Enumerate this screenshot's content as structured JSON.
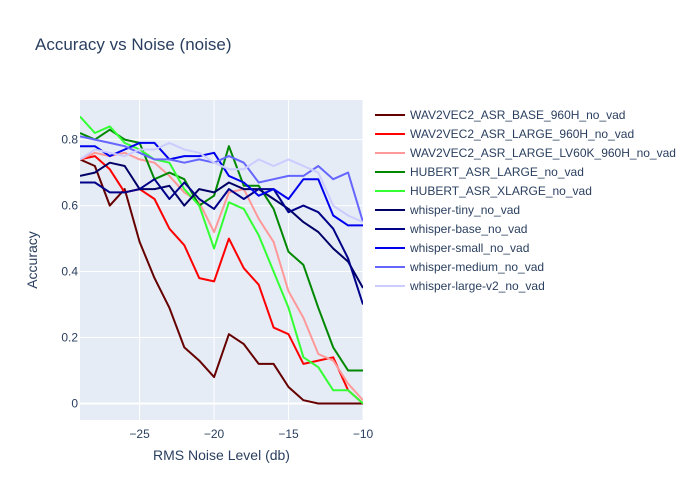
{
  "chart_data": {
    "type": "line",
    "title": "Accuracy vs Noise (noise)",
    "xlabel": "RMS Noise Level (db)",
    "ylabel": "Accuracy",
    "xlim": [
      -29,
      -10
    ],
    "ylim": [
      -0.05,
      0.92
    ],
    "x_ticks": [
      -25,
      -20,
      -15,
      -10
    ],
    "x_tick_labels": [
      "−25",
      "−20",
      "−15",
      "−10"
    ],
    "y_ticks": [
      0,
      0.2,
      0.4,
      0.6,
      0.8
    ],
    "y_tick_labels": [
      "0",
      "0.2",
      "0.4",
      "0.6",
      "0.8"
    ],
    "grid": true,
    "legend_position": "right",
    "x": [
      -29,
      -28,
      -27,
      -26,
      -25,
      -24,
      -23,
      -22,
      -21,
      -20,
      -19,
      -18,
      -17,
      -16,
      -15,
      -14,
      -13,
      -12,
      -11,
      -10
    ],
    "series": [
      {
        "name": "WAV2VEC2_ASR_BASE_960H_no_vad",
        "color": "#660000",
        "values": [
          0.74,
          0.72,
          0.6,
          0.65,
          0.49,
          0.38,
          0.29,
          0.17,
          0.13,
          0.08,
          0.21,
          0.18,
          0.12,
          0.12,
          0.05,
          0.01,
          0.0,
          0.0,
          0.0,
          0.0
        ]
      },
      {
        "name": "WAV2VEC2_ASR_LARGE_960H_no_vad",
        "color": "#ff0000",
        "values": [
          0.74,
          0.75,
          0.71,
          0.64,
          0.65,
          0.62,
          0.53,
          0.48,
          0.38,
          0.37,
          0.5,
          0.41,
          0.36,
          0.23,
          0.21,
          0.12,
          0.13,
          0.14,
          0.04,
          0.0
        ]
      },
      {
        "name": "WAV2VEC2_ASR_LARGE_LV60K_960H_no_vad",
        "color": "#ff9999",
        "values": [
          0.74,
          0.76,
          0.75,
          0.76,
          0.74,
          0.73,
          0.69,
          0.64,
          0.61,
          0.52,
          0.64,
          0.65,
          0.56,
          0.49,
          0.34,
          0.26,
          0.15,
          0.13,
          0.06,
          0.01
        ]
      },
      {
        "name": "HUBERT_ASR_LARGE_no_vad",
        "color": "#008800",
        "values": [
          0.82,
          0.8,
          0.83,
          0.8,
          0.79,
          0.68,
          0.7,
          0.68,
          0.6,
          0.63,
          0.78,
          0.66,
          0.66,
          0.59,
          0.46,
          0.42,
          0.29,
          0.17,
          0.1,
          0.1
        ]
      },
      {
        "name": "HUBERT_ASR_XLARGE_no_vad",
        "color": "#33ff33",
        "values": [
          0.87,
          0.82,
          0.84,
          0.79,
          0.77,
          0.74,
          0.73,
          0.65,
          0.6,
          0.47,
          0.61,
          0.59,
          0.51,
          0.4,
          0.29,
          0.14,
          0.11,
          0.04,
          0.04,
          0.0
        ]
      },
      {
        "name": "whisper-tiny_no_vad",
        "color": "#000066",
        "values": [
          0.69,
          0.7,
          0.73,
          0.72,
          0.65,
          0.65,
          0.66,
          0.6,
          0.65,
          0.64,
          0.67,
          0.65,
          0.65,
          0.62,
          0.59,
          0.55,
          0.52,
          0.47,
          0.43,
          0.35
        ]
      },
      {
        "name": "whisper-base_no_vad",
        "color": "#000088",
        "values": [
          0.67,
          0.67,
          0.64,
          0.64,
          0.65,
          0.68,
          0.62,
          0.67,
          0.62,
          0.59,
          0.65,
          0.62,
          0.65,
          0.65,
          0.58,
          0.6,
          0.58,
          0.53,
          0.44,
          0.3
        ]
      },
      {
        "name": "whisper-small_no_vad",
        "color": "#0000ee",
        "values": [
          0.78,
          0.78,
          0.75,
          0.77,
          0.79,
          0.79,
          0.74,
          0.75,
          0.75,
          0.76,
          0.69,
          0.67,
          0.63,
          0.65,
          0.62,
          0.68,
          0.68,
          0.57,
          0.54,
          0.54
        ]
      },
      {
        "name": "whisper-medium_no_vad",
        "color": "#6666ff",
        "values": [
          0.81,
          0.8,
          0.79,
          0.78,
          0.76,
          0.74,
          0.74,
          0.73,
          0.74,
          0.73,
          0.75,
          0.73,
          0.67,
          0.68,
          0.69,
          0.69,
          0.72,
          0.68,
          0.7,
          0.55
        ]
      },
      {
        "name": "whisper-large-v2_no_vad",
        "color": "#ccccff",
        "values": [
          0.74,
          0.77,
          0.76,
          0.75,
          0.77,
          0.77,
          0.79,
          0.77,
          0.76,
          0.73,
          0.71,
          0.71,
          0.74,
          0.72,
          0.74,
          0.72,
          0.7,
          0.6,
          0.57,
          0.55
        ]
      }
    ]
  }
}
